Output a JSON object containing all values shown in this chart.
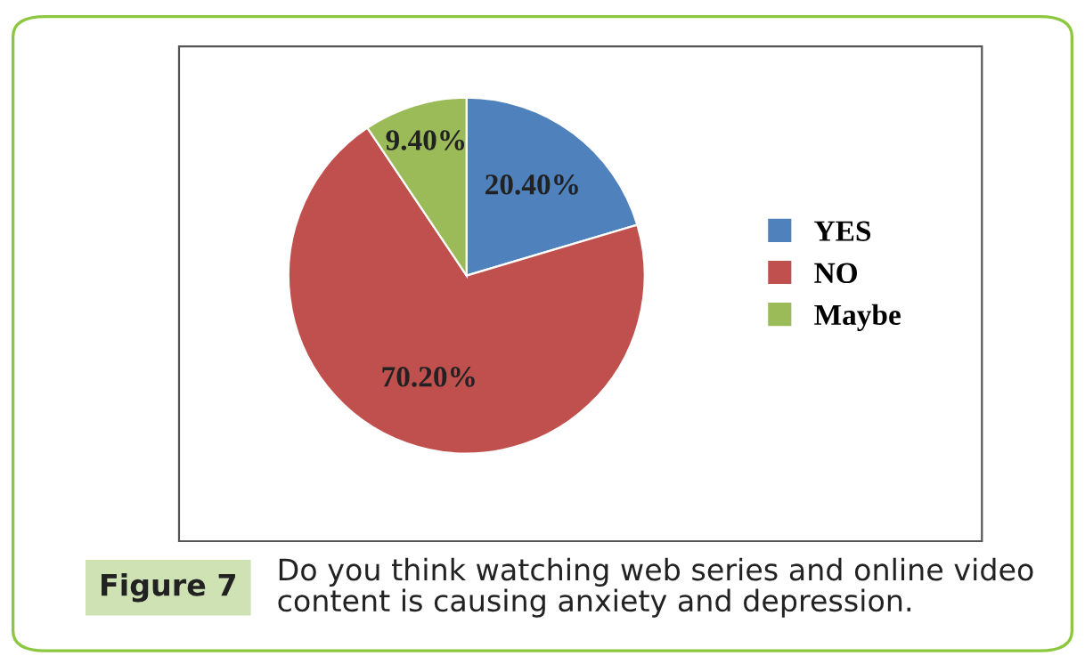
{
  "chart_data": {
    "type": "pie",
    "categories": [
      "YES",
      "NO",
      "Maybe"
    ],
    "values": [
      20.4,
      70.2,
      9.4
    ],
    "colors": [
      "#4f81bd",
      "#c0504d",
      "#9bbb59"
    ],
    "value_labels": [
      "20.40%",
      "70.20%",
      "9.40%"
    ],
    "legend": "right",
    "annotations": [
      "Figure 7",
      "Do you think watching web series and online video content is causing anxiety and depression."
    ]
  }
}
